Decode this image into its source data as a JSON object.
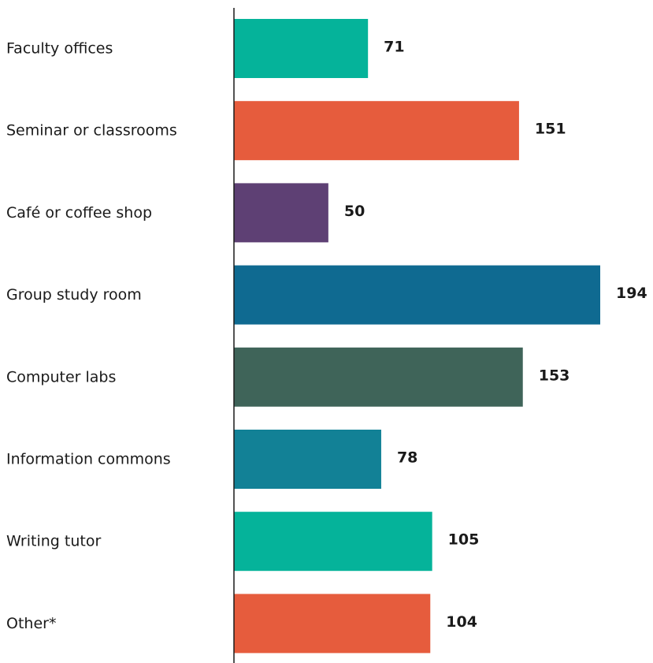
{
  "chart_data": {
    "type": "bar",
    "orientation": "horizontal",
    "categories": [
      "Faculty offices",
      "Seminar or classrooms",
      "Café or coffee shop",
      "Group study room",
      "Computer labs",
      "Information commons",
      "Writing tutor",
      "Other*"
    ],
    "values": [
      71,
      151,
      50,
      194,
      153,
      78,
      105,
      104
    ],
    "colors": [
      "#05b39a",
      "#e65c3d",
      "#5e4074",
      "#0f6a91",
      "#3f6459",
      "#128196",
      "#05b39a",
      "#e65c3d"
    ],
    "xlim": [
      0,
      194
    ],
    "grid": false,
    "legend": "none"
  }
}
